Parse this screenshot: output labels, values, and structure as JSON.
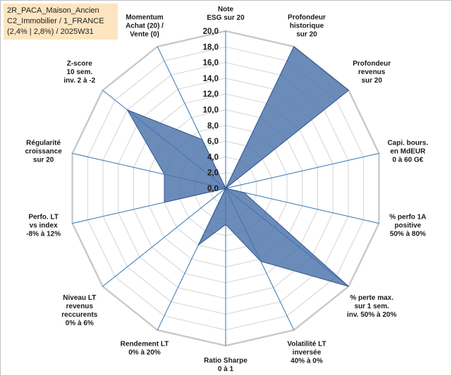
{
  "title_box": {
    "line1": "2R_PACA_Maison_Ancien",
    "line2": "C2_Immobilier / 1_FRANCE",
    "line3": "(2,4% | 2,8%) / 2025W31"
  },
  "colors": {
    "fill": "#4a72aa",
    "stroke": "#34588f",
    "grid": "#d4d4d4",
    "spoke": "#2e75b6"
  },
  "chart_data": {
    "type": "radar",
    "rmin": 0,
    "rmax": 20,
    "tick_step": 2,
    "tick_labels": [
      "0,0",
      "2,0",
      "4,0",
      "6,0",
      "8,0",
      "10,0",
      "12,0",
      "14,0",
      "16,0",
      "18,0",
      "20,0"
    ],
    "axes": [
      "Note\nESG sur 20",
      "Profondeur\nhistorique\nsur 20",
      "Profondeur\nrevenus\nsur 20",
      "Capi. bours.\nen MdEUR\n0 à 60 G€",
      "% perfo 1A\npositive\n50% à 80%",
      "% perte max.\nsur 1 sem.\ninv. 50% à 20%",
      "Volatilité LT\ninversée\n40% à 0%",
      "Ratio Sharpe\n0 à 1",
      "Rendement LT\n0% à 20%",
      "Niveau LT\nrevenus\nreccurents\n0% à 6%",
      "Perfo. LT\nvs index\n-8% à 12%",
      "Régularité\ncroissance\nsur 20",
      "Z-score\n10 sem.\ninv. 2 à -2",
      "Momentum\nAchat (20) /\nVente (0)"
    ],
    "values": [
      0,
      20,
      20,
      0,
      2.4,
      20,
      10.3,
      4.6,
      8,
      0,
      8,
      8,
      16,
      6.9
    ]
  }
}
